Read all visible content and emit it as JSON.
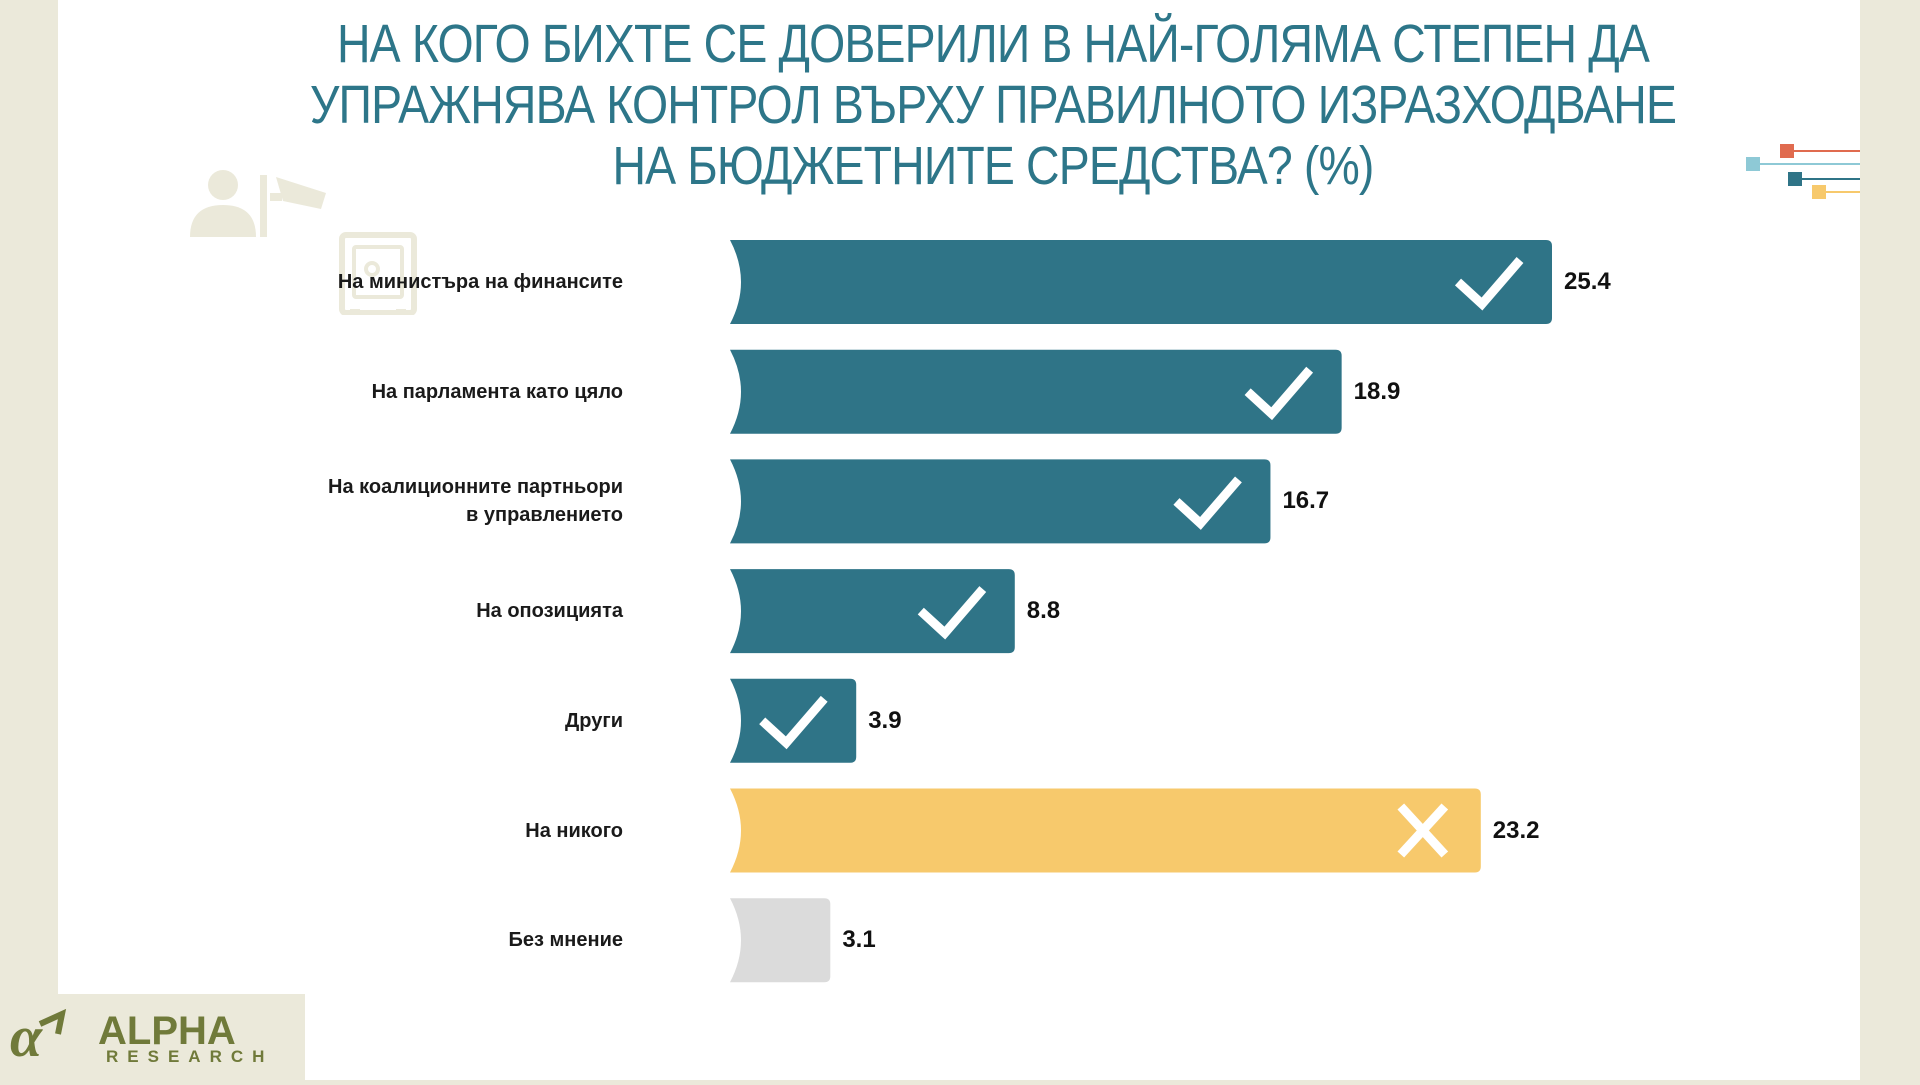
{
  "title": "НА КОГО БИХТЕ СЕ ДОВЕРИЛИ В НАЙ-ГОЛЯМА СТЕПЕН ДА УПРАЖНЯВА КОНТРОЛ ВЪРХУ ПРАВИЛНОТО ИЗРАЗХОДВАНЕ НА БЮДЖЕТНИТЕ СРЕДСТВА?  (%)",
  "logo": {
    "brand": "ALPHA",
    "sub": "RESEARCH"
  },
  "colors": {
    "teal": "#2f7487",
    "yellow": "#f7c96c",
    "gray": "#dbdbdb",
    "accent_red": "#e06b4f",
    "accent_blue": "#8ec9d6"
  },
  "chart_data": {
    "type": "bar",
    "orientation": "horizontal",
    "title": "НА КОГО БИХТЕ СЕ ДОВЕРИЛИ В НАЙ-ГОЛЯМА СТЕПЕН ДА УПРАЖНЯВА КОНТРОЛ ВЪРХУ ПРАВИЛНОТО ИЗРАЗХОДВАНЕ НА БЮДЖЕТНИТЕ СРЕДСТВА?  (%)",
    "categories": [
      [
        "На министъра на финансите"
      ],
      [
        "На парламента като цяло"
      ],
      [
        "На коалиционните партньори",
        "в управлението"
      ],
      [
        "На опозицията"
      ],
      [
        "Други"
      ],
      [
        "На никого"
      ],
      [
        "Без мнение"
      ]
    ],
    "values": [
      25.4,
      18.9,
      16.7,
      8.8,
      3.9,
      23.2,
      3.1
    ],
    "value_labels": [
      "25.4",
      "18.9",
      "16.7",
      "8.8",
      "3.9",
      "23.2",
      "3.1"
    ],
    "bar_colors": [
      "#2f7487",
      "#2f7487",
      "#2f7487",
      "#2f7487",
      "#2f7487",
      "#f7c96c",
      "#dbdbdb"
    ],
    "marks": [
      "check-icon",
      "check-icon",
      "check-icon",
      "check-icon",
      "check-icon",
      "cross-icon",
      ""
    ],
    "xlim": [
      0,
      25.4
    ]
  }
}
